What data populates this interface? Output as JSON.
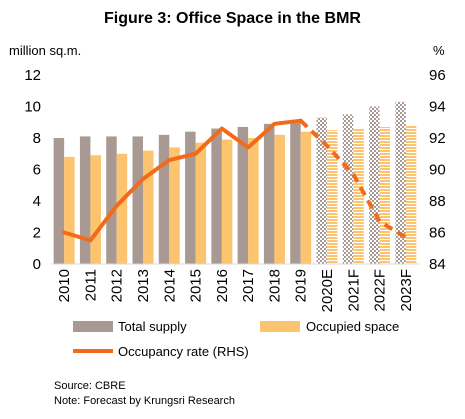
{
  "title": "Figure 3: Office Space in the BMR",
  "units": {
    "left": "million sq.m.",
    "right": "%"
  },
  "chart_data": {
    "type": "bar",
    "categories": [
      "2010",
      "2011",
      "2012",
      "2013",
      "2014",
      "2015",
      "2016",
      "2017",
      "2018",
      "2019",
      "2020E",
      "2021F",
      "2022F",
      "2023F"
    ],
    "forecast_from_index": 10,
    "series": [
      {
        "name": "Total supply",
        "type": "bar",
        "axis": "left",
        "color": "#a89a93",
        "values": [
          8.0,
          8.1,
          8.1,
          8.1,
          8.2,
          8.4,
          8.6,
          8.7,
          8.9,
          9.0,
          9.3,
          9.5,
          10.0,
          10.3
        ]
      },
      {
        "name": "Occupied space",
        "type": "bar",
        "axis": "left",
        "color": "#fcc46e",
        "values": [
          6.8,
          6.9,
          7.0,
          7.2,
          7.4,
          7.7,
          7.9,
          8.0,
          8.2,
          8.4,
          8.5,
          8.6,
          8.7,
          8.8
        ]
      },
      {
        "name": "Occupancy rate (RHS)",
        "type": "line",
        "axis": "right",
        "color": "#f26a1b",
        "values": [
          86.0,
          85.5,
          87.7,
          89.4,
          90.6,
          91.0,
          92.6,
          91.4,
          92.9,
          93.1,
          91.5,
          89.7,
          86.7,
          85.7
        ]
      }
    ],
    "y_left": {
      "min": 0,
      "max": 12,
      "ticks": [
        0,
        2,
        4,
        6,
        8,
        10,
        12
      ]
    },
    "y_right": {
      "min": 84,
      "max": 96,
      "ticks": [
        84,
        86,
        88,
        90,
        92,
        94,
        96
      ]
    },
    "grid": false,
    "legend_position": "bottom"
  },
  "notes": {
    "source": "Source: CBRE",
    "note": "Note: Forecast by Krungsri Research"
  }
}
